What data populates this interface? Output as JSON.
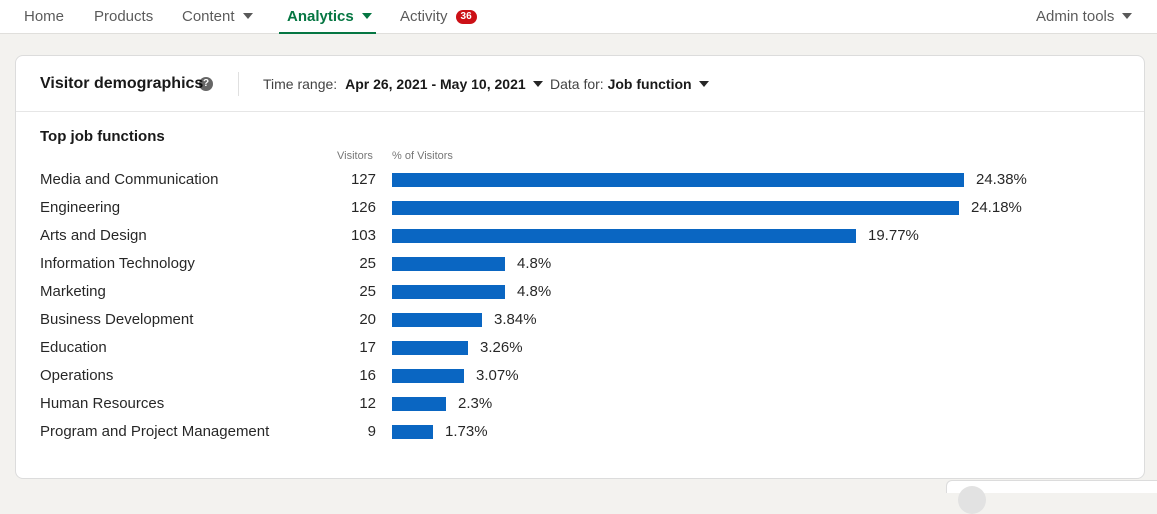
{
  "nav": {
    "items": [
      {
        "label": "Home",
        "dropdown": false,
        "active": false
      },
      {
        "label": "Products",
        "dropdown": false,
        "active": false
      },
      {
        "label": "Content",
        "dropdown": true,
        "active": false
      },
      {
        "label": "Analytics",
        "dropdown": true,
        "active": true
      },
      {
        "label": "Activity",
        "dropdown": false,
        "active": false,
        "badge": "36"
      }
    ],
    "admin_tools": "Admin tools"
  },
  "card": {
    "title": "Visitor demographics",
    "time_range_label": "Time range:",
    "time_range_value": "Apr 26, 2021 - May 10, 2021",
    "data_for_label": "Data for:",
    "data_for_value": "Job function"
  },
  "chart_data": {
    "type": "bar",
    "title": "Top job functions",
    "count_header": "Visitors",
    "percent_header": "% of Visitors",
    "max_percent": 24.38,
    "rows": [
      {
        "label": "Media and Communication",
        "visitors": 127,
        "percent": 24.38,
        "percent_label": "24.38%"
      },
      {
        "label": "Engineering",
        "visitors": 126,
        "percent": 24.18,
        "percent_label": "24.18%"
      },
      {
        "label": "Arts and Design",
        "visitors": 103,
        "percent": 19.77,
        "percent_label": "19.77%"
      },
      {
        "label": "Information Technology",
        "visitors": 25,
        "percent": 4.8,
        "percent_label": "4.8%"
      },
      {
        "label": "Marketing",
        "visitors": 25,
        "percent": 4.8,
        "percent_label": "4.8%"
      },
      {
        "label": "Business Development",
        "visitors": 20,
        "percent": 3.84,
        "percent_label": "3.84%"
      },
      {
        "label": "Education",
        "visitors": 17,
        "percent": 3.26,
        "percent_label": "3.26%"
      },
      {
        "label": "Operations",
        "visitors": 16,
        "percent": 3.07,
        "percent_label": "3.07%"
      },
      {
        "label": "Human Resources",
        "visitors": 12,
        "percent": 2.3,
        "percent_label": "2.3%"
      },
      {
        "label": "Program and Project Management",
        "visitors": 9,
        "percent": 1.73,
        "percent_label": "1.73%"
      }
    ]
  },
  "colors": {
    "accent": "#057642",
    "bar": "#0a66c2",
    "badge": "#cc1016"
  },
  "icons": {
    "help": "help-icon",
    "dropdown": "caret-down-icon"
  }
}
